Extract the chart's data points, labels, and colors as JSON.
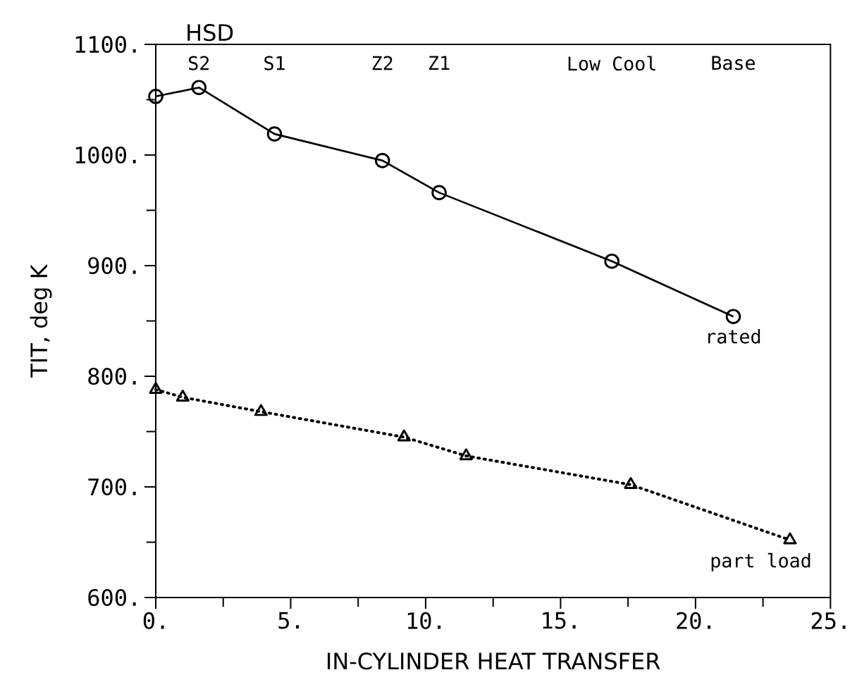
{
  "chart_data": {
    "type": "line",
    "title": "HSD",
    "xlabel": "IN-CYLINDER HEAT TRANSFER",
    "ylabel": "TIT, deg K",
    "xlim": [
      0,
      25
    ],
    "ylim": [
      600,
      1100
    ],
    "xticks": [
      {
        "value": 0,
        "label": "0."
      },
      {
        "value": 2.5,
        "label": null
      },
      {
        "value": 5,
        "label": "5."
      },
      {
        "value": 7.5,
        "label": null
      },
      {
        "value": 10,
        "label": "10."
      },
      {
        "value": 12.5,
        "label": null
      },
      {
        "value": 15,
        "label": "15."
      },
      {
        "value": 17.5,
        "label": null
      },
      {
        "value": 20,
        "label": "20."
      },
      {
        "value": 22.5,
        "label": null
      },
      {
        "value": 25,
        "label": "25."
      }
    ],
    "yticks": [
      {
        "value": 600,
        "label": "600."
      },
      {
        "value": 650,
        "label": null
      },
      {
        "value": 700,
        "label": "700."
      },
      {
        "value": 750,
        "label": null
      },
      {
        "value": 800,
        "label": "800."
      },
      {
        "value": 850,
        "label": null
      },
      {
        "value": 900,
        "label": "900."
      },
      {
        "value": 950,
        "label": null
      },
      {
        "value": 1000,
        "label": "1000."
      },
      {
        "value": 1050,
        "label": null
      },
      {
        "value": 1100,
        "label": "1100."
      }
    ],
    "grid": false,
    "legend": false,
    "series": [
      {
        "name": "rated",
        "color": "#000000",
        "marker": "circle",
        "line_style": "solid",
        "x": [
          0,
          1.6,
          4.4,
          8.4,
          10.5,
          16.9,
          21.4
        ],
        "values": [
          1053,
          1061,
          1019,
          995,
          966,
          904,
          854
        ]
      },
      {
        "name": "part load",
        "color": "#000000",
        "marker": "triangle",
        "line_style": "dotted",
        "x": [
          0,
          1.0,
          3.9,
          9.2,
          11.5,
          17.6,
          23.5
        ],
        "values": [
          788,
          781,
          768,
          745,
          728,
          702,
          652
        ]
      }
    ],
    "annotations": [
      "S2",
      "S1",
      "Z2",
      "Z1",
      "Low Cool",
      "Base"
    ]
  }
}
